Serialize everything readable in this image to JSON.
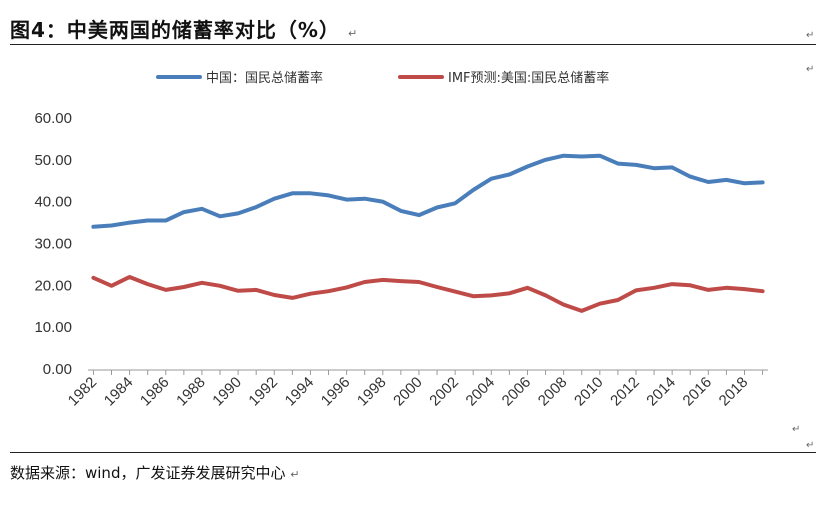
{
  "header": {
    "title": "图4：中美两国的储蓄率对比（%）",
    "para_mark": "↵"
  },
  "footer": {
    "source": "数据来源：wind，广发证券发展研究中心",
    "para_mark": "↵"
  },
  "colors": {
    "china": "#4A7EBB",
    "us": "#BE4B48"
  },
  "chart_data": {
    "type": "line",
    "title": "",
    "xlabel": "",
    "ylabel": "",
    "ylim": [
      0,
      60
    ],
    "yticks": [
      "0.00",
      "10.00",
      "20.00",
      "30.00",
      "40.00",
      "50.00",
      "60.00"
    ],
    "x_tick_labels": [
      "1982",
      "1984",
      "1986",
      "1988",
      "1990",
      "1992",
      "1994",
      "1996",
      "1998",
      "2000",
      "2002",
      "2004",
      "2006",
      "2008",
      "2010",
      "2012",
      "2014",
      "2016",
      "2018"
    ],
    "x": [
      1982,
      1983,
      1984,
      1985,
      1986,
      1987,
      1988,
      1989,
      1990,
      1991,
      1992,
      1993,
      1994,
      1995,
      1996,
      1997,
      1998,
      1999,
      2000,
      2001,
      2002,
      2003,
      2004,
      2005,
      2006,
      2007,
      2008,
      2009,
      2010,
      2011,
      2012,
      2013,
      2014,
      2015,
      2016,
      2017,
      2018,
      2019
    ],
    "grid": false,
    "legend_position": "top",
    "series": [
      {
        "name": "中国：国民总储蓄率",
        "values": [
          34.0,
          34.3,
          35.0,
          35.5,
          35.5,
          37.5,
          38.3,
          36.5,
          37.2,
          38.7,
          40.7,
          42.0,
          42.0,
          41.5,
          40.5,
          40.7,
          40.0,
          37.8,
          36.8,
          38.6,
          39.6,
          42.8,
          45.5,
          46.5,
          48.4,
          50.0,
          51.0,
          50.8,
          51.0,
          49.1,
          48.8,
          48.0,
          48.2,
          46.0,
          44.7,
          45.2,
          44.4,
          44.6
        ]
      },
      {
        "name": "IMF预测:美国:国民总储蓄率",
        "values": [
          21.8,
          19.9,
          22.0,
          20.3,
          18.9,
          19.6,
          20.6,
          19.9,
          18.7,
          18.9,
          17.7,
          17.0,
          18.0,
          18.6,
          19.5,
          20.8,
          21.3,
          21.0,
          20.8,
          19.6,
          18.5,
          17.4,
          17.6,
          18.1,
          19.4,
          17.6,
          15.4,
          13.9,
          15.6,
          16.5,
          18.8,
          19.4,
          20.3,
          20.0,
          18.9,
          19.4,
          19.1,
          18.6
        ]
      }
    ]
  }
}
